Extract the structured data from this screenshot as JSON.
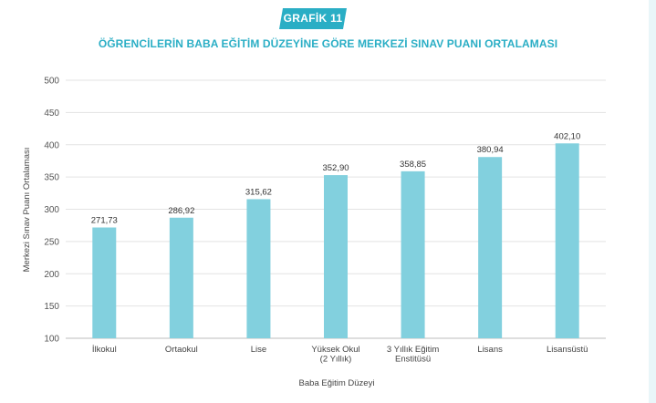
{
  "badge": {
    "label": "GRAFİK 11",
    "color": "#2aaec5"
  },
  "chart_data": {
    "type": "bar",
    "title": "ÖĞRENCİLERİN BABA EĞİTİM DÜZEYİNE GÖRE MERKEZİ SINAV PUANI ORTALAMASI",
    "xlabel": "Baba Eğitim Düzeyi",
    "ylabel": "Merkezi Sınav Puanı Ortalaması",
    "ylim": [
      100,
      500
    ],
    "yticks": [
      100,
      150,
      200,
      250,
      300,
      350,
      400,
      450,
      500
    ],
    "grid": true,
    "bar_color": "#82d0de",
    "categories": [
      [
        "İlkokul"
      ],
      [
        "Ortaokul"
      ],
      [
        "Lise"
      ],
      [
        "Yüksek Okul",
        "(2 Yıllık)"
      ],
      [
        "3 Yıllık Eğitim",
        "Enstitüsü"
      ],
      [
        "Lisans"
      ],
      [
        "Lisansüstü"
      ]
    ],
    "values": [
      271.73,
      286.92,
      315.62,
      352.9,
      358.85,
      380.94,
      402.1
    ],
    "value_labels": [
      "271,73",
      "286,92",
      "315,62",
      "352,90",
      "358,85",
      "380,94",
      "402,10"
    ]
  }
}
